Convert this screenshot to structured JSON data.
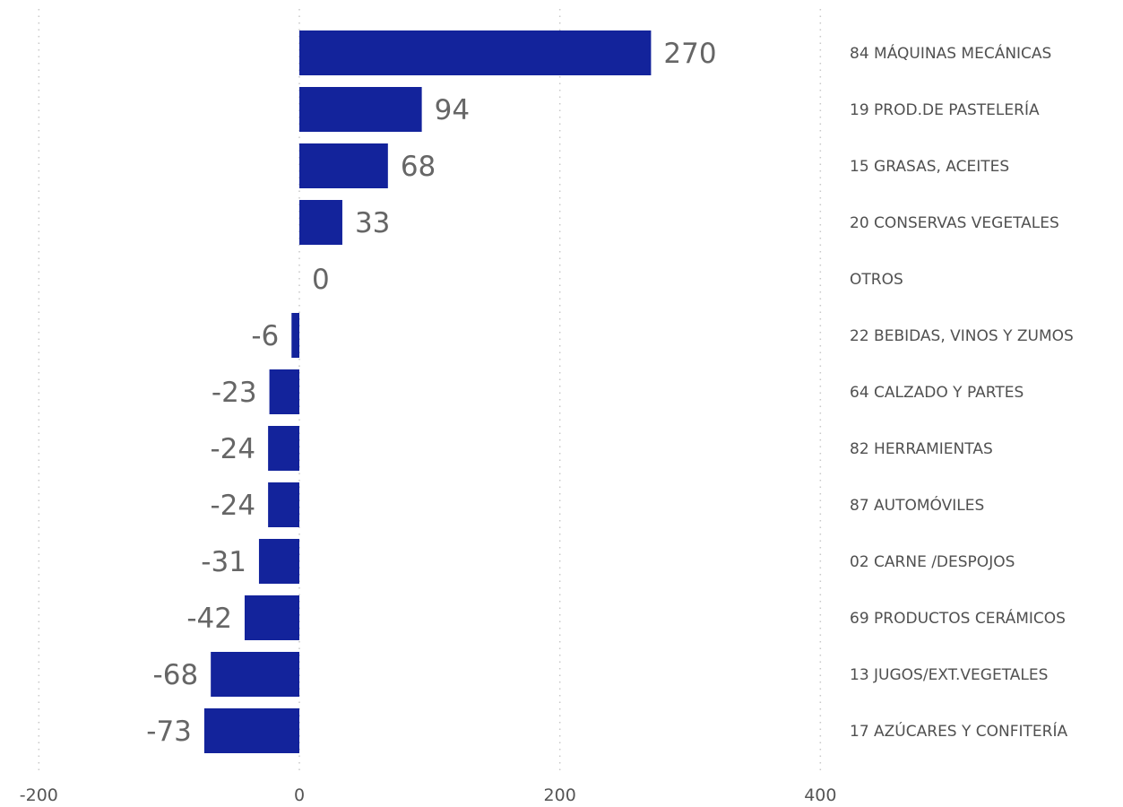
{
  "chart_data": {
    "type": "bar",
    "orientation": "horizontal",
    "title": "",
    "xlabel": "",
    "ylabel": "",
    "categories": [
      "84 MÁQUINAS MECÁNICAS",
      "19 PROD.DE PASTELERÍA",
      "15 GRASAS, ACEITES",
      "20 CONSERVAS VEGETALES",
      "OTROS",
      "22 BEBIDAS, VINOS Y ZUMOS",
      "64 CALZADO Y PARTES",
      "82 HERRAMIENTAS",
      "87 AUTOMÓVILES",
      "02 CARNE /DESPOJOS",
      "69 PRODUCTOS CERÁMICOS",
      "13 JUGOS/EXT.VEGETALES",
      "17 AZÚCARES Y CONFITERÍA"
    ],
    "values": [
      270,
      94,
      68,
      33,
      0,
      -6,
      -23,
      -24,
      -24,
      -31,
      -42,
      -68,
      -73
    ],
    "data_labels": [
      "270",
      "94",
      "68",
      "33",
      "0",
      "-6",
      "-23",
      "-24",
      "-24",
      "-31",
      "-42",
      "-68",
      "-73"
    ],
    "xlim": [
      -200,
      400
    ],
    "x_ticks": [
      -200,
      0,
      200,
      400
    ],
    "x_tick_labels": [
      "-200",
      "0",
      "200",
      "400"
    ],
    "grid": true,
    "category_labels_position": "right",
    "bar_color": "#13239b",
    "legend": "none"
  }
}
